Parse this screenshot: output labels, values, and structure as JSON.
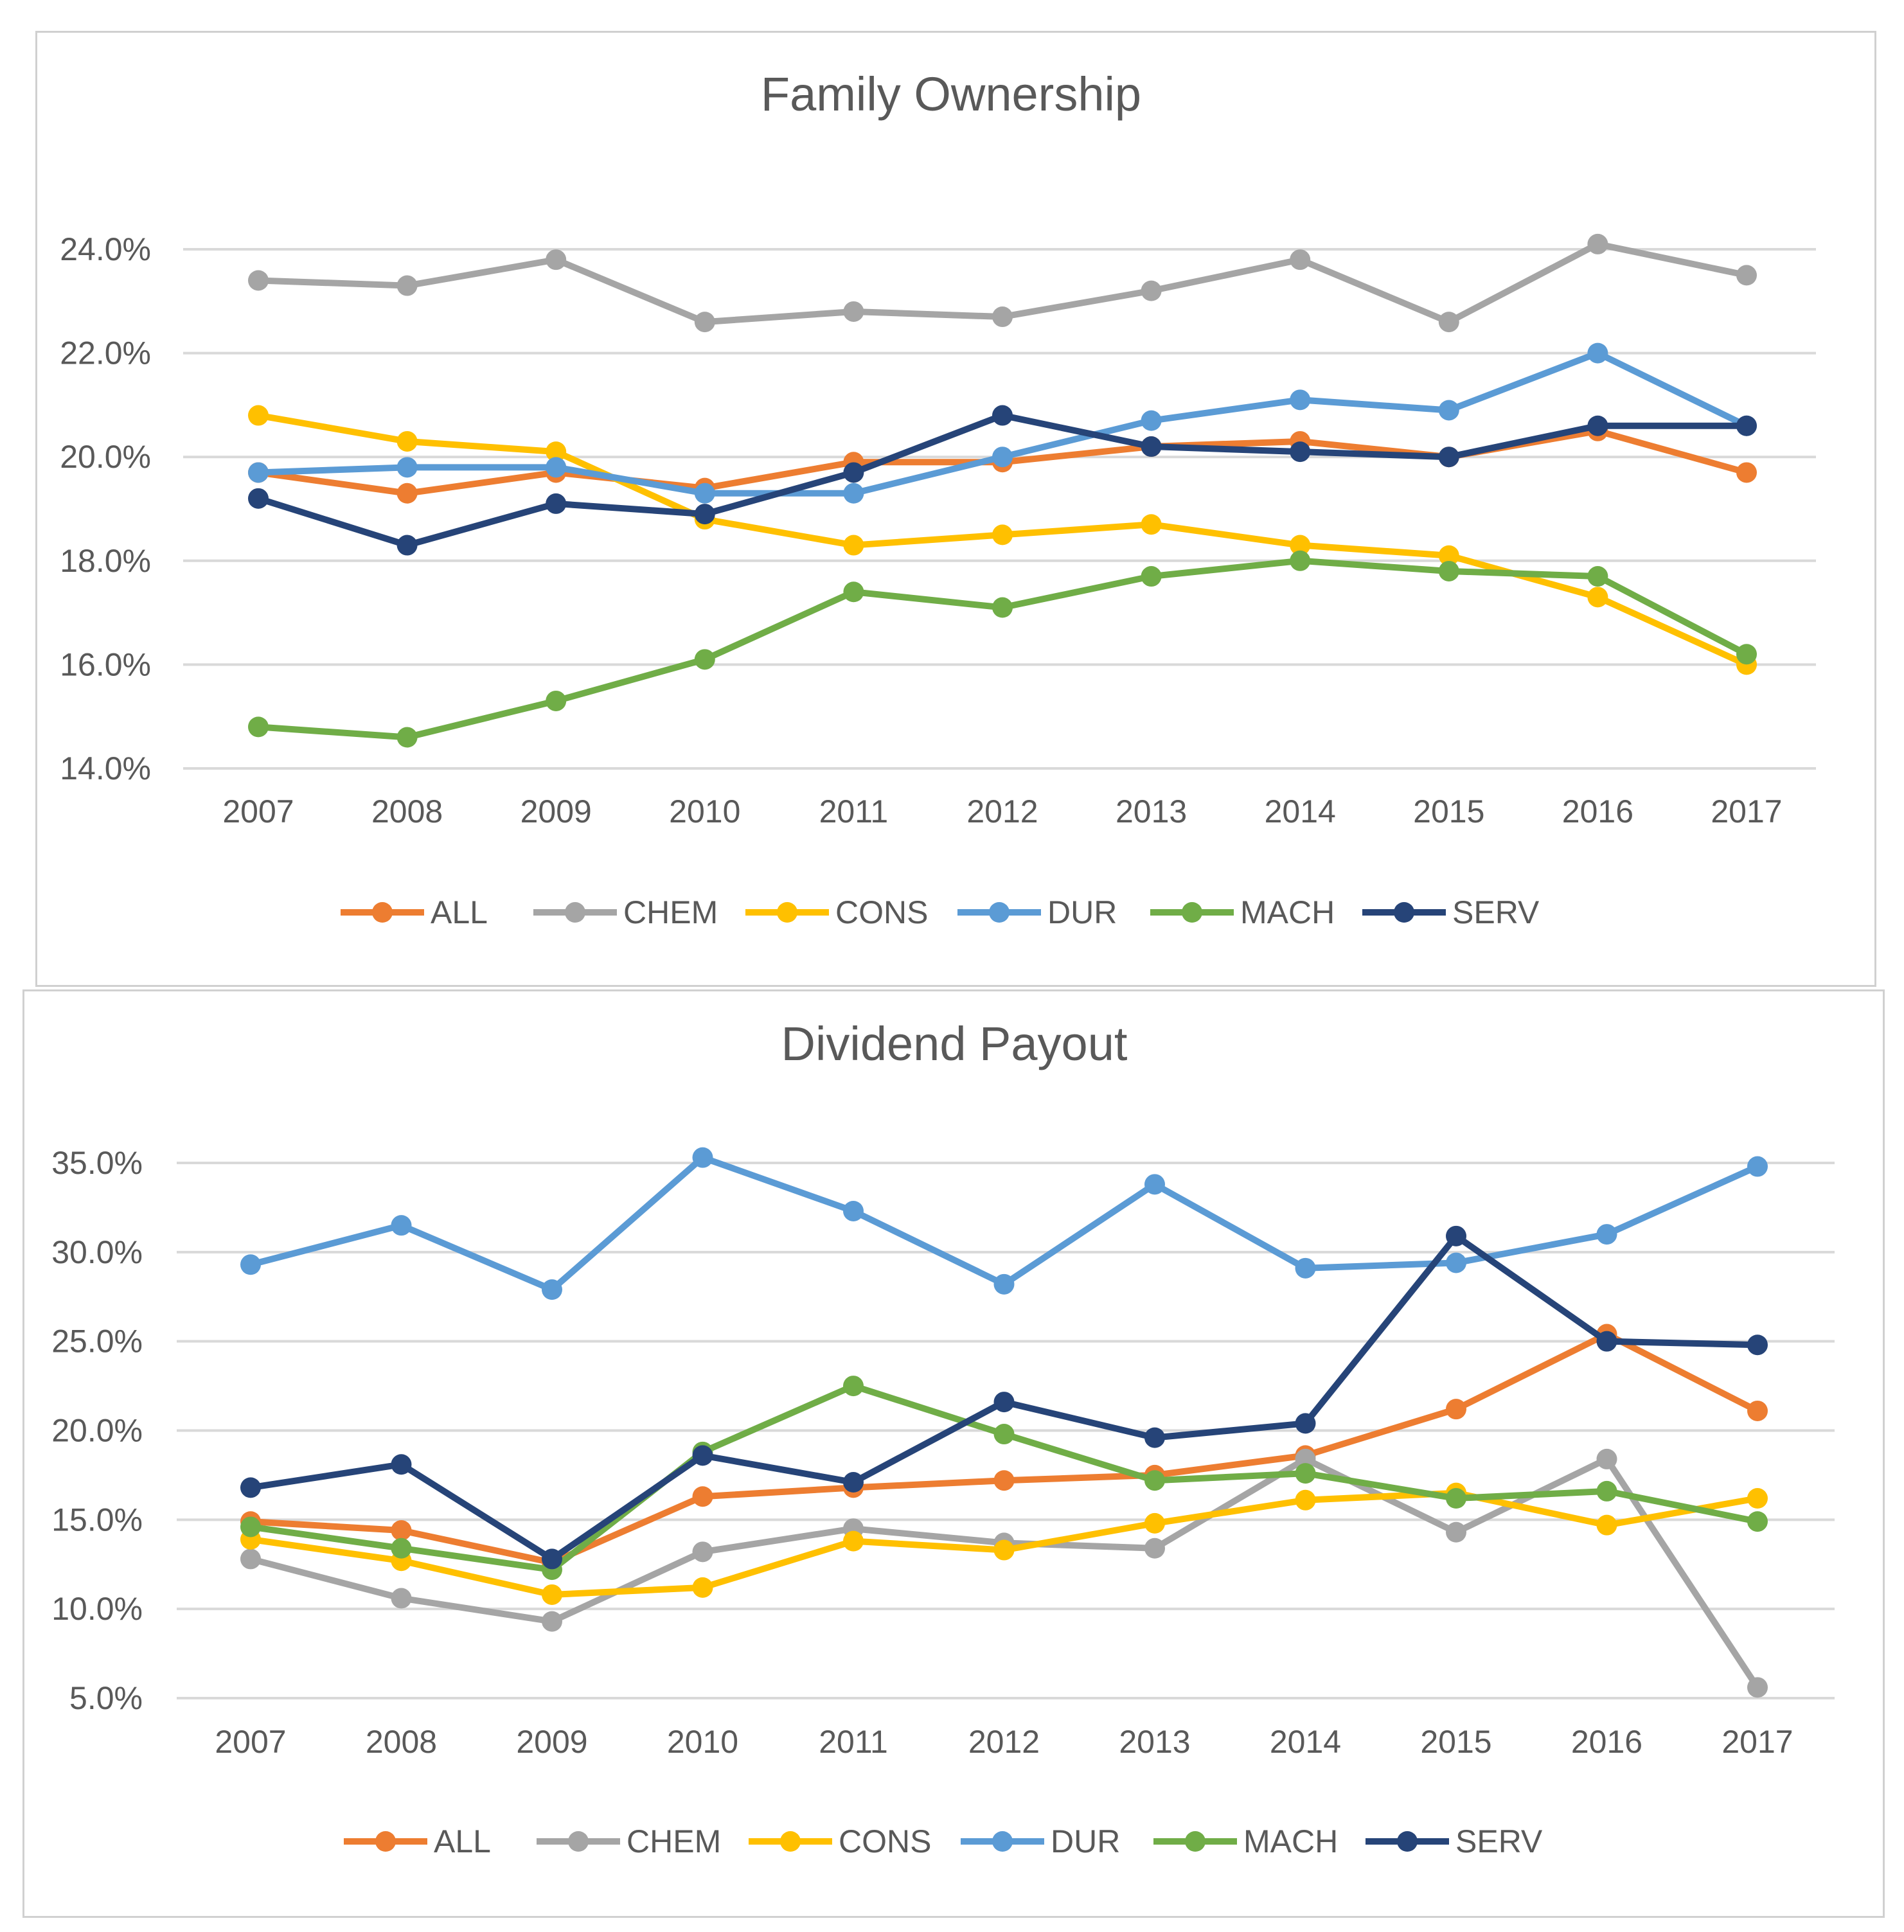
{
  "chart_data": [
    {
      "type": "line",
      "title": "Family Ownership",
      "categories": [
        "2007",
        "2008",
        "2009",
        "2010",
        "2011",
        "2012",
        "2013",
        "2014",
        "2015",
        "2016",
        "2017"
      ],
      "ylim": [
        0.14,
        0.24
      ],
      "yticks": [
        0.14,
        0.16,
        0.18,
        0.2,
        0.22,
        0.24
      ],
      "ytick_labels": [
        "14.0%",
        "16.0%",
        "18.0%",
        "20.0%",
        "22.0%",
        "24.0%"
      ],
      "xlabel": "",
      "ylabel": "",
      "grid": true,
      "legend": "bottom",
      "series": [
        {
          "name": "ALL",
          "color": "#ED7D31",
          "values": [
            0.197,
            0.193,
            0.197,
            0.194,
            0.199,
            0.199,
            0.202,
            0.203,
            0.2,
            0.205,
            0.197
          ]
        },
        {
          "name": "CHEM",
          "color": "#A5A5A5",
          "values": [
            0.234,
            0.233,
            0.238,
            0.226,
            0.228,
            0.227,
            0.232,
            0.238,
            0.226,
            0.241,
            0.235
          ]
        },
        {
          "name": "CONS",
          "color": "#FFC000",
          "values": [
            0.208,
            0.203,
            0.201,
            0.188,
            0.183,
            0.185,
            0.187,
            0.183,
            0.181,
            0.173,
            0.16
          ]
        },
        {
          "name": "DUR",
          "color": "#5B9BD5",
          "values": [
            0.197,
            0.198,
            0.198,
            0.193,
            0.193,
            0.2,
            0.207,
            0.211,
            0.209,
            0.22,
            0.206
          ]
        },
        {
          "name": "MACH",
          "color": "#70AD47",
          "values": [
            0.148,
            0.146,
            0.153,
            0.161,
            0.174,
            0.171,
            0.177,
            0.18,
            0.178,
            0.177,
            0.162
          ]
        },
        {
          "name": "SERV",
          "color": "#264478",
          "values": [
            0.192,
            0.183,
            0.191,
            0.189,
            0.197,
            0.208,
            0.202,
            0.201,
            0.2,
            0.206,
            0.206
          ]
        }
      ]
    },
    {
      "type": "line",
      "title": "Dividend Payout",
      "categories": [
        "2007",
        "2008",
        "2009",
        "2010",
        "2011",
        "2012",
        "2013",
        "2014",
        "2015",
        "2016",
        "2017"
      ],
      "ylim": [
        0.05,
        0.35
      ],
      "yticks": [
        0.05,
        0.1,
        0.15,
        0.2,
        0.25,
        0.3,
        0.35
      ],
      "ytick_labels": [
        "5.0%",
        "10.0%",
        "15.0%",
        "20.0%",
        "25.0%",
        "30.0%",
        "35.0%"
      ],
      "xlabel": "",
      "ylabel": "",
      "grid": true,
      "legend": "bottom",
      "series": [
        {
          "name": "ALL",
          "color": "#ED7D31",
          "values": [
            0.149,
            0.144,
            0.126,
            0.163,
            0.168,
            0.172,
            0.175,
            0.186,
            0.212,
            0.254,
            0.211
          ]
        },
        {
          "name": "CHEM",
          "color": "#A5A5A5",
          "values": [
            0.128,
            0.106,
            0.093,
            0.132,
            0.145,
            0.137,
            0.134,
            0.184,
            0.143,
            0.184,
            0.056
          ]
        },
        {
          "name": "CONS",
          "color": "#FFC000",
          "values": [
            0.139,
            0.127,
            0.108,
            0.112,
            0.138,
            0.133,
            0.148,
            0.161,
            0.165,
            0.147,
            0.162
          ]
        },
        {
          "name": "DUR",
          "color": "#5B9BD5",
          "values": [
            0.293,
            0.315,
            0.279,
            0.353,
            0.323,
            0.282,
            0.338,
            0.291,
            0.294,
            0.31,
            0.348
          ]
        },
        {
          "name": "MACH",
          "color": "#70AD47",
          "values": [
            0.146,
            0.134,
            0.122,
            0.188,
            0.225,
            0.198,
            0.172,
            0.176,
            0.162,
            0.166,
            0.149
          ]
        },
        {
          "name": "SERV",
          "color": "#264478",
          "values": [
            0.168,
            0.181,
            0.128,
            0.186,
            0.171,
            0.216,
            0.196,
            0.204,
            0.309,
            0.25,
            0.248
          ]
        }
      ]
    }
  ]
}
